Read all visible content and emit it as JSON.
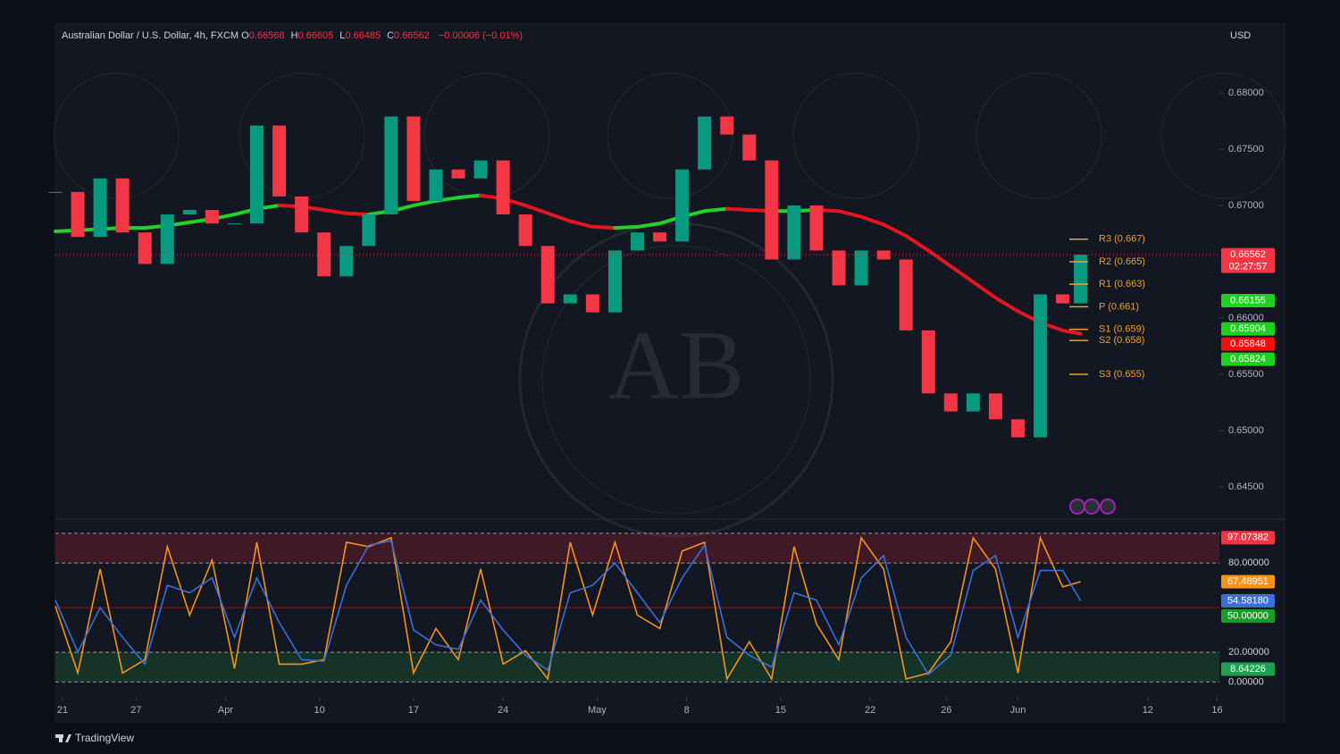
{
  "chart_data": [
    {
      "type": "candlestick",
      "title": "Australian Dollar / U.S. Dollar, 4h, FXCM",
      "ohlc_header": [
        {
          "key": "O",
          "value": "0.66568"
        },
        {
          "key": "H",
          "value": "0.66605"
        },
        {
          "key": "L",
          "value": "0.66485"
        },
        {
          "key": "C",
          "value": "0.66562"
        }
      ],
      "change": "−0.00006 (−0.01%)",
      "currency": "USD",
      "x": [
        0,
        5,
        10,
        15,
        20,
        25,
        30,
        35,
        40,
        45,
        50,
        55,
        60,
        65,
        70,
        75,
        80,
        85,
        90,
        95,
        100,
        105,
        110,
        115,
        120,
        125,
        130,
        135,
        140,
        145,
        150,
        155,
        160,
        165,
        170,
        175,
        180,
        185,
        190,
        195,
        200,
        205,
        210,
        215,
        220,
        225,
        229
      ],
      "values": [
        0.6712,
        0.6672,
        0.6724,
        0.6676,
        0.6648,
        0.6692,
        0.6696,
        0.6684,
        0.6684,
        0.6771,
        0.6708,
        0.6676,
        0.6637,
        0.6664,
        0.6692,
        0.6779,
        0.6704,
        0.6732,
        0.6724,
        0.674,
        0.6692,
        0.6664,
        0.6613,
        0.6621,
        0.6605,
        0.666,
        0.6676,
        0.6668,
        0.6732,
        0.6779,
        0.6763,
        0.674,
        0.6652,
        0.67,
        0.666,
        0.6629,
        0.666,
        0.6652,
        0.6589,
        0.6533,
        0.6517,
        0.6533,
        0.651,
        0.6494,
        0.6621,
        0.6613,
        0.66562
      ],
      "up_color": "#089981",
      "down_color": "#f23645",
      "moving_average": {
        "rising_color": "#22d12a",
        "falling_color": "#e3161f",
        "values": [
          0.6677,
          0.6678,
          0.6679,
          0.668,
          0.668,
          0.6682,
          0.6685,
          0.6688,
          0.6692,
          0.6697,
          0.67,
          0.6699,
          0.6696,
          0.6693,
          0.6692,
          0.6695,
          0.67,
          0.6704,
          0.6707,
          0.6709,
          0.6706,
          0.67,
          0.6693,
          0.6686,
          0.6681,
          0.668,
          0.6681,
          0.6684,
          0.669,
          0.6695,
          0.6697,
          0.6696,
          0.6695,
          0.6695,
          0.6696,
          0.6695,
          0.669,
          0.6683,
          0.6673,
          0.666,
          0.6646,
          0.6632,
          0.6618,
          0.6606,
          0.6596,
          0.6589,
          0.6586
        ]
      },
      "xlim": [
        0,
        260
      ],
      "xticks": [
        {
          "value": 1.6,
          "label": "21"
        },
        {
          "value": 18,
          "label": "27"
        },
        {
          "value": 38,
          "label": "Apr"
        },
        {
          "value": 59,
          "label": "10"
        },
        {
          "value": 80,
          "label": "17"
        },
        {
          "value": 100,
          "label": "24"
        },
        {
          "value": 121,
          "label": "May"
        },
        {
          "value": 141,
          "label": "8"
        },
        {
          "value": 162,
          "label": "15"
        },
        {
          "value": 182,
          "label": "22"
        },
        {
          "value": 199,
          "label": "26"
        },
        {
          "value": 215,
          "label": "Jun"
        },
        {
          "value": 244,
          "label": "12"
        },
        {
          "value": 259.5,
          "label": "16"
        }
      ],
      "ylim": [
        0.64222,
        0.68603
      ],
      "yticks": [
        {
          "value": 0.645,
          "label": "0.64500"
        },
        {
          "value": 0.65,
          "label": "0.65000"
        },
        {
          "value": 0.655,
          "label": "0.65500"
        },
        {
          "value": 0.66,
          "label": "0.66000"
        },
        {
          "value": 0.665,
          "label": "0.66500"
        },
        {
          "value": 0.67,
          "label": "0.67000"
        },
        {
          "value": 0.675,
          "label": "0.67500"
        },
        {
          "value": 0.68,
          "label": "0.68000"
        }
      ],
      "price_labels": [
        {
          "value": 0.66562,
          "label": "0.66562",
          "color": "#f23645",
          "sublabel": "02:27:57"
        },
        {
          "value": 0.66155,
          "label": "0.66155",
          "color": "#1ed11e"
        },
        {
          "value": 0.65904,
          "label": "0.65904",
          "color": "#1ed11e"
        },
        {
          "value": 0.65848,
          "label": "0.65848",
          "color": "#f00f0f"
        },
        {
          "value": 0.65824,
          "label": "0.65824",
          "color": "#1ed11e"
        }
      ],
      "pivot_color": "#f0a030",
      "pivots": [
        {
          "value": 0.667,
          "label": "R3 (0.667)"
        },
        {
          "value": 0.665,
          "label": "R2 (0.665)"
        },
        {
          "value": 0.663,
          "label": "R1 (0.663)"
        },
        {
          "value": 0.661,
          "label": "P (0.661)"
        },
        {
          "value": 0.659,
          "label": "S1 (0.659)"
        },
        {
          "value": 0.658,
          "label": "S2 (0.658)"
        },
        {
          "value": 0.655,
          "label": "S3 (0.655)"
        }
      ],
      "watermark": "AB",
      "brand": "TradingView"
    },
    {
      "type": "line",
      "series": [
        {
          "color": "#f7931a",
          "values": [
            51,
            6,
            76,
            6,
            15,
            91,
            45,
            82,
            9,
            94,
            12,
            12,
            15,
            94,
            91,
            97,
            6,
            36,
            15,
            76,
            12,
            21,
            2,
            94,
            45,
            94,
            45,
            36,
            88,
            94,
            2,
            27,
            2,
            91,
            39,
            15,
            97,
            76,
            2,
            6,
            27,
            97,
            76,
            6,
            97,
            64,
            67.48951
          ]
        },
        {
          "color": "#3a6fd8",
          "values": [
            55,
            20,
            50,
            30,
            12,
            65,
            60,
            70,
            30,
            70,
            40,
            15,
            14,
            65,
            92,
            95,
            35,
            25,
            22,
            55,
            35,
            18,
            8,
            60,
            65,
            80,
            60,
            40,
            70,
            92,
            30,
            18,
            10,
            60,
            55,
            25,
            70,
            85,
            30,
            5,
            18,
            75,
            85,
            30,
            75,
            75,
            54.5818
          ]
        }
      ],
      "ylim": [
        -10,
        109
      ],
      "yticks": [
        {
          "value": 0,
          "label": "0.00000"
        },
        {
          "value": 20,
          "label": "20.00000"
        },
        {
          "value": 80,
          "label": "80.00000"
        }
      ],
      "bands": [
        {
          "range": [
            80,
            100
          ],
          "color": "rgba(200,30,50,0.25)"
        },
        {
          "range": [
            0,
            20
          ],
          "color": "rgba(30,160,60,0.22)"
        }
      ],
      "midline": 50,
      "price_labels": [
        {
          "value": 97.07382,
          "label": "97.07382",
          "color": "#f23645"
        },
        {
          "value": 67.48951,
          "label": "67.48951",
          "color": "#f7931a"
        },
        {
          "value": 54.5818,
          "label": "54.58180",
          "color": "#3a6fd8"
        },
        {
          "value": 50,
          "label": "50.00000",
          "color": "#1a9a2a"
        },
        {
          "value": 8.64226,
          "label": "8.64226",
          "color": "#1ea050"
        }
      ]
    }
  ]
}
